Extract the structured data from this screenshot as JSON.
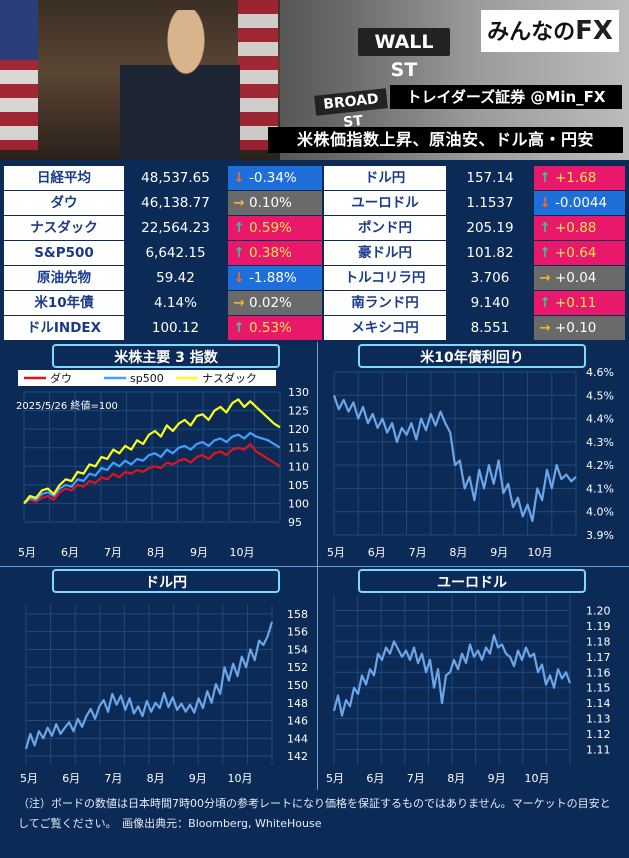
{
  "logo": {
    "text": "みんなの",
    "fx": "FX"
  },
  "header": {
    "sign_main": "WALL ST",
    "sign_sub": "BROAD ST",
    "brand": "トレイダーズ証券 @Min_FX",
    "headline": "米株価指数上昇、原油安、ドル高・円安"
  },
  "rates_left": [
    {
      "label": "日経平均",
      "value": "48,537.65",
      "change": "-0.34%",
      "dir": "down"
    },
    {
      "label": "ダウ",
      "value": "46,138.77",
      "change": "0.10%",
      "dir": "flat"
    },
    {
      "label": "ナスダック",
      "value": "22,564.23",
      "change": "0.59%",
      "dir": "up"
    },
    {
      "label": "S&P500",
      "value": "6,642.15",
      "change": "0.38%",
      "dir": "up"
    },
    {
      "label": "原油先物",
      "value": "59.42",
      "change": "-1.88%",
      "dir": "down"
    },
    {
      "label": "米10年債",
      "value": "4.14%",
      "change": "0.02%",
      "dir": "flat"
    },
    {
      "label": "ドルINDEX",
      "value": "100.12",
      "change": "0.53%",
      "dir": "up"
    }
  ],
  "rates_right": [
    {
      "label": "ドル円",
      "value": "157.14",
      "change": "+1.68",
      "dir": "up"
    },
    {
      "label": "ユーロドル",
      "value": "1.1537",
      "change": "-0.0044",
      "dir": "down"
    },
    {
      "label": "ポンド円",
      "value": "205.19",
      "change": "+0.88",
      "dir": "up"
    },
    {
      "label": "豪ドル円",
      "value": "101.82",
      "change": "+0.64",
      "dir": "up"
    },
    {
      "label": "トルコリラ円",
      "value": "3.706",
      "change": "+0.04",
      "dir": "flat"
    },
    {
      "label": "南ランド円",
      "value": "9.140",
      "change": "+0.11",
      "dir": "up"
    },
    {
      "label": "メキシコ円",
      "value": "8.551",
      "change": "+0.10",
      "dir": "flat"
    }
  ],
  "colors": {
    "up": "#e8186b",
    "down": "#1e6fd9",
    "flat": "#6a6a6a",
    "dow": "#e0141e",
    "sp500": "#3fa0ff",
    "nasdaq": "#ffff1a",
    "single": "#6ca6e8",
    "bg": "#0b2a55"
  },
  "chart_data": [
    {
      "type": "line",
      "title": "米株主要 3 指数",
      "subtitle": "2025/5/26 終値=100",
      "x_ticks": [
        "5月",
        "6月",
        "7月",
        "8月",
        "9月",
        "10月"
      ],
      "ylim": [
        95,
        130
      ],
      "y_ticks": [
        "95",
        "100",
        "105",
        "110",
        "115",
        "120",
        "125",
        "130"
      ],
      "legend": "top",
      "series": [
        {
          "name": "ダウ",
          "color": "#e0141e",
          "values": [
            100,
            101,
            100.5,
            101.5,
            102,
            101,
            103,
            104,
            103.5,
            105,
            104.5,
            106,
            105.5,
            107,
            106.5,
            108,
            107,
            108.5,
            108,
            109,
            108.5,
            109.5,
            110,
            109.5,
            111,
            110.5,
            111.5,
            112,
            111,
            112.5,
            113,
            112,
            113.5,
            114,
            113,
            114.5,
            115,
            114.5,
            116,
            114,
            113,
            112,
            111,
            110
          ]
        },
        {
          "name": "sp500",
          "color": "#3fa0ff",
          "values": [
            100,
            101.5,
            101,
            102.5,
            103,
            102,
            104,
            105,
            104.5,
            106.5,
            106,
            108,
            107.5,
            109.5,
            109,
            111,
            110,
            111.5,
            110.5,
            112,
            111.5,
            113,
            113.5,
            112.5,
            114.5,
            113.5,
            115,
            115.5,
            114.5,
            116,
            116.5,
            115.5,
            117,
            117.5,
            116.5,
            118,
            118.5,
            117.5,
            119,
            118,
            117.5,
            117,
            116,
            115
          ]
        },
        {
          "name": "ナスダック",
          "color": "#ffff1a",
          "values": [
            100,
            102,
            101.5,
            103.5,
            104,
            102.5,
            105,
            106.5,
            106,
            108.5,
            108,
            110.5,
            110,
            112.5,
            112,
            114.5,
            113.5,
            115.5,
            114.5,
            117,
            116,
            118.5,
            119.5,
            118,
            121,
            119.5,
            121.5,
            122.5,
            121,
            123.5,
            124,
            122.5,
            125,
            126,
            124.5,
            127,
            128,
            126,
            127.5,
            126,
            124.5,
            123,
            121.5,
            120.5
          ]
        }
      ]
    },
    {
      "type": "line",
      "title": "米10年債利回り",
      "x_ticks": [
        "5月",
        "6月",
        "7月",
        "8月",
        "9月",
        "10月"
      ],
      "ylim": [
        3.9,
        4.6
      ],
      "y_ticks": [
        "3.9%",
        "4.0%",
        "4.1%",
        "4.2%",
        "4.3%",
        "4.4%",
        "4.5%",
        "4.6%"
      ],
      "series": [
        {
          "values": [
            4.5,
            4.44,
            4.48,
            4.43,
            4.47,
            4.4,
            4.45,
            4.38,
            4.42,
            4.36,
            4.4,
            4.34,
            4.38,
            4.3,
            4.36,
            4.33,
            4.38,
            4.31,
            4.4,
            4.35,
            4.42,
            4.37,
            4.43,
            4.38,
            4.34,
            4.2,
            4.22,
            4.1,
            4.15,
            4.05,
            4.18,
            4.1,
            4.2,
            4.12,
            4.22,
            4.08,
            4.12,
            4.02,
            4.06,
            3.98,
            4.03,
            3.96,
            4.1,
            4.05,
            4.18,
            4.1,
            4.2,
            4.14,
            4.16,
            4.13,
            4.15
          ]
        }
      ]
    },
    {
      "type": "line",
      "title": "ドル円",
      "x_ticks": [
        "5月",
        "6月",
        "7月",
        "8月",
        "9月",
        "10月"
      ],
      "ylim": [
        141,
        159
      ],
      "y_ticks": [
        "142",
        "144",
        "146",
        "148",
        "150",
        "152",
        "154",
        "156",
        "158"
      ],
      "series": [
        {
          "values": [
            142.8,
            144.5,
            143.2,
            144.8,
            144.0,
            145.2,
            144.3,
            145.6,
            144.5,
            145.2,
            145.8,
            144.8,
            146.2,
            145.3,
            146.5,
            147.3,
            146.2,
            147.6,
            148.3,
            147.0,
            149.0,
            147.8,
            148.8,
            147.2,
            148.5,
            146.8,
            147.6,
            146.5,
            148.2,
            147.0,
            148.0,
            147.4,
            149.1,
            147.5,
            148.6,
            147.2,
            147.9,
            147.0,
            147.8,
            146.9,
            148.5,
            147.4,
            149.3,
            148.0,
            150.1,
            149.0,
            152.0,
            150.5,
            152.4,
            151.0,
            153.2,
            152.0,
            154.0,
            152.8,
            155.0,
            154.5,
            155.5,
            157.1
          ]
        }
      ]
    },
    {
      "type": "line",
      "title": "ユーロドル",
      "x_ticks": [
        "5月",
        "6月",
        "7月",
        "8月",
        "9月",
        "10月"
      ],
      "ylim": [
        1.1,
        1.21
      ],
      "y_ticks": [
        "1.11",
        "1.12",
        "1.13",
        "1.14",
        "1.15",
        "1.16",
        "1.17",
        "1.18",
        "1.19",
        "1.20"
      ],
      "series": [
        {
          "values": [
            1.135,
            1.145,
            1.132,
            1.142,
            1.138,
            1.15,
            1.146,
            1.158,
            1.152,
            1.162,
            1.158,
            1.172,
            1.168,
            1.176,
            1.172,
            1.18,
            1.175,
            1.17,
            1.174,
            1.168,
            1.176,
            1.166,
            1.172,
            1.16,
            1.168,
            1.15,
            1.162,
            1.14,
            1.158,
            1.16,
            1.168,
            1.162,
            1.172,
            1.166,
            1.178,
            1.17,
            1.174,
            1.168,
            1.176,
            1.172,
            1.184,
            1.176,
            1.178,
            1.172,
            1.17,
            1.164,
            1.174,
            1.168,
            1.176,
            1.17,
            1.172,
            1.16,
            1.165,
            1.152,
            1.158,
            1.15,
            1.162,
            1.156,
            1.16,
            1.153
          ]
        }
      ]
    }
  ],
  "note": "（注）ボードの数値は日本時間7時00分頃の参考レートになり価格を保証するものではありません。マーケットの目安としてご覧ください。　画像出典元：Bloomberg, WhiteHouse"
}
